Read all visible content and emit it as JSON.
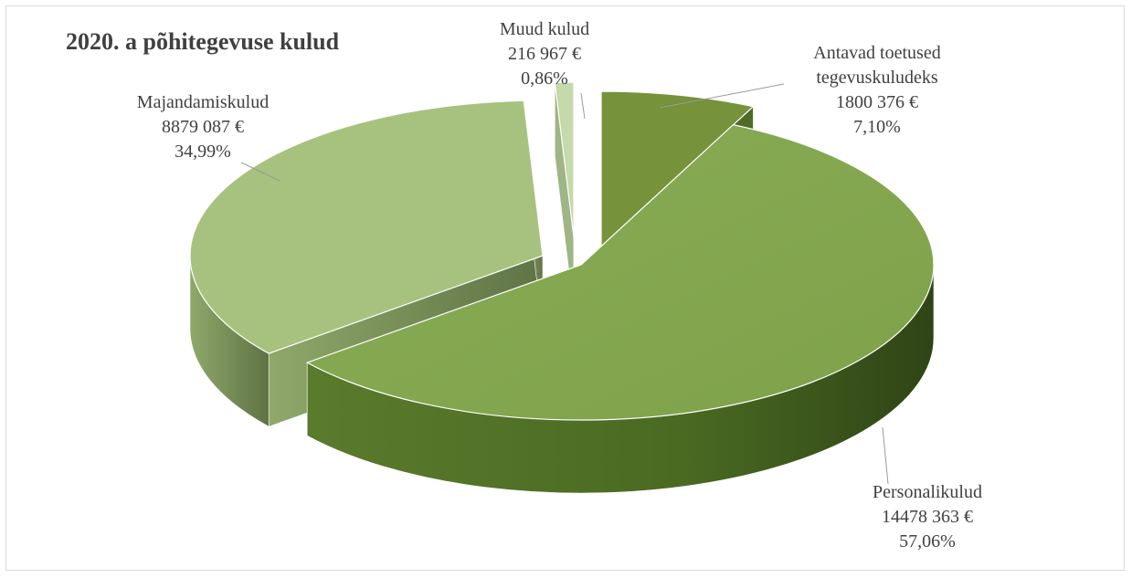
{
  "chart_data": {
    "type": "pie",
    "title": "2020. a põhitegevuse kulud",
    "slices": [
      {
        "name": "Antavad toetused tegevuskuludeks",
        "name_lines": [
          "Antavad toetused",
          "tegevuskuludeks"
        ],
        "value_label": "1800 376 €",
        "value": 1800376,
        "percent_label": "7,10%",
        "percent": 7.1,
        "color": "#77933c"
      },
      {
        "name": "Personalikulud",
        "name_lines": [
          "Personalikulud"
        ],
        "value_label": "14478 363 €",
        "value": 14478363,
        "percent_label": "57,06%",
        "percent": 57.06,
        "color": "#8db05b"
      },
      {
        "name": "Majandamiskulud",
        "name_lines": [
          "Majandamiskulud"
        ],
        "value_label": "8879 087 €",
        "value": 8879087,
        "percent_label": "34,99%",
        "percent": 34.99,
        "color": "#a9c47f"
      },
      {
        "name": "Muud kulud",
        "name_lines": [
          "Muud kulud"
        ],
        "value_label": "216 967 €",
        "value": 216967,
        "percent_label": "0,86%",
        "percent": 0.86,
        "color": "#c5d9a8"
      }
    ]
  }
}
